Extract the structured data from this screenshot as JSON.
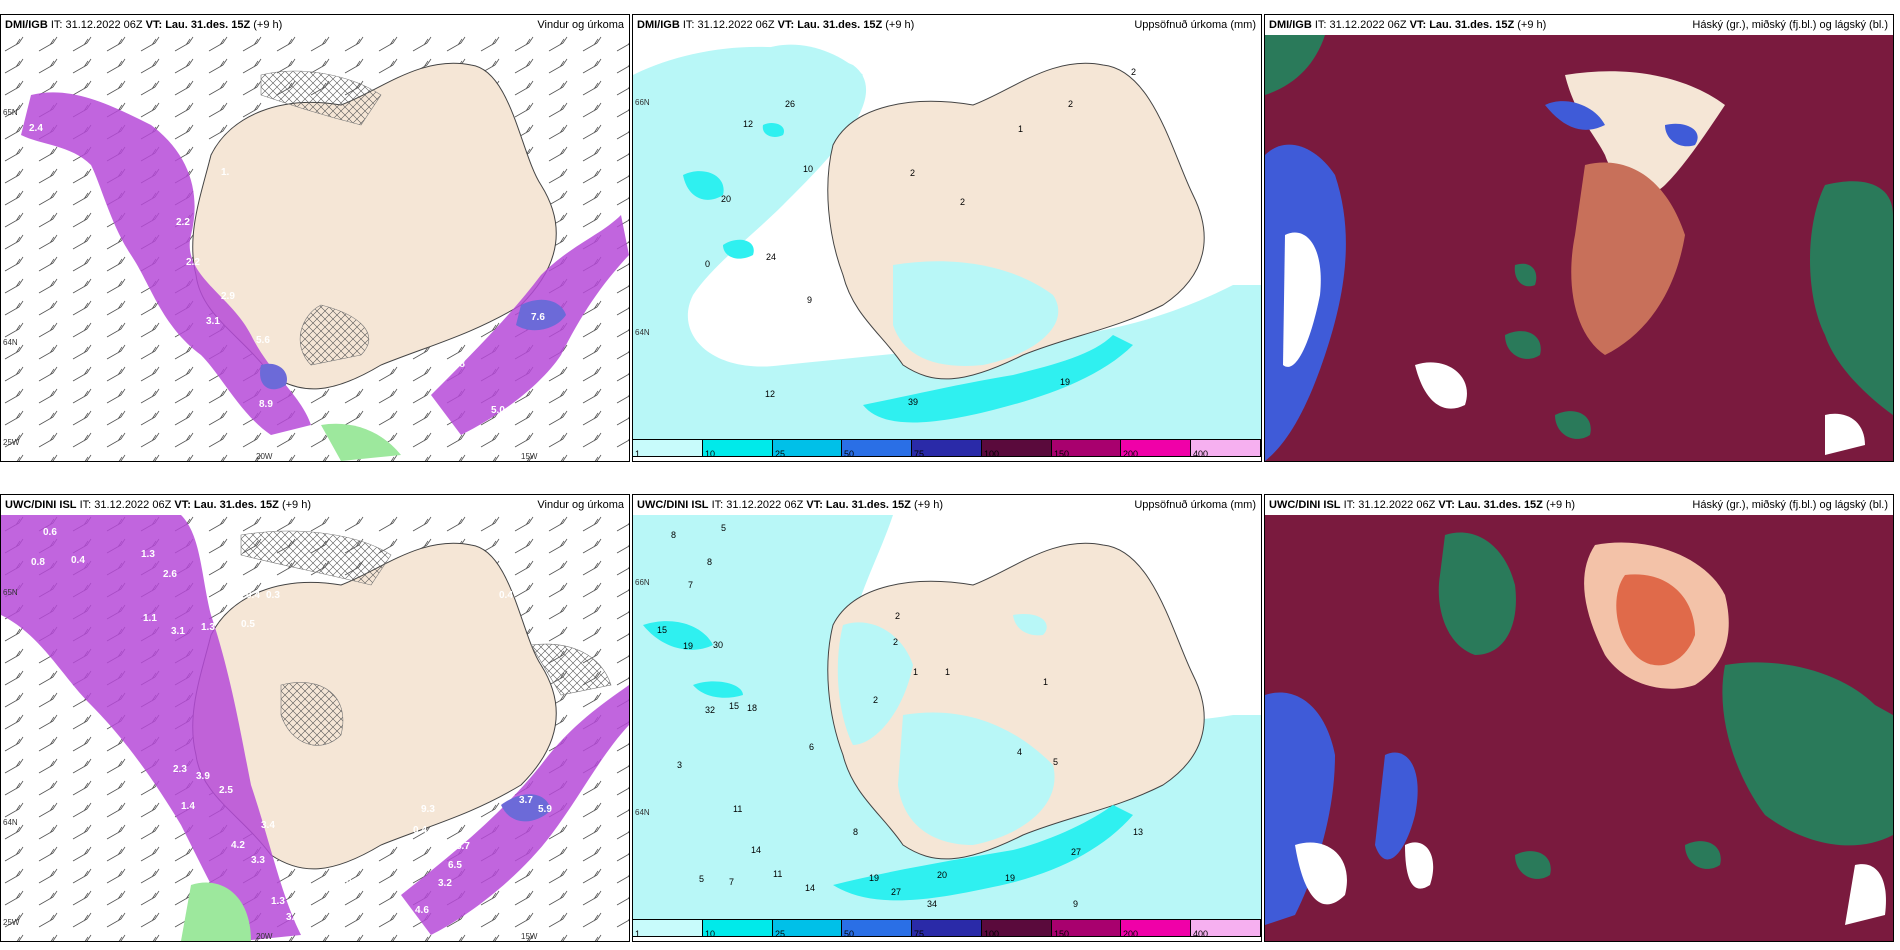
{
  "panels": [
    {
      "model": "DMI/IGB",
      "it": "IT: 31.12.2022 06Z",
      "vt": "VT: Lau. 31.des. 15Z",
      "lead": "(+9 h)",
      "variable": "Vindur og úrkoma",
      "values": [
        "2.4",
        "2.1",
        "1.",
        "4.0",
        "2.2",
        "2.2",
        "2.9",
        "3.1",
        "5.6",
        "8.9",
        "7.6",
        "0.8",
        "5.0",
        "4.2",
        "2.1"
      ],
      "axis_labels": [
        "65N",
        "64N",
        "25W",
        "20W",
        "15W"
      ]
    },
    {
      "model": "DMI/IGB",
      "it": "IT: 31.12.2022 06Z",
      "vt": "VT: Lau. 31.des. 15Z",
      "lead": "(+9 h)",
      "variable": "Uppsöfnuð úrkoma (mm)",
      "values": [
        "26",
        "12",
        "10",
        "20",
        "2",
        "2",
        "2",
        "1",
        "0",
        "24",
        "9",
        "12",
        "19",
        "39",
        "2"
      ],
      "axis_labels": [
        "66N",
        "64N"
      ]
    },
    {
      "model": "DMI/IGB",
      "it": "IT: 31.12.2022 06Z",
      "vt": "VT: Lau. 31.des. 15Z",
      "lead": "(+9 h)",
      "variable": "Háský (gr.), miðský (fj.bl.) og lágský (bl.)"
    },
    {
      "model": "UWC/DINI ISL",
      "it": "IT: 31.12.2022 06Z",
      "vt": "VT: Lau. 31.des. 15Z",
      "lead": "(+9 h)",
      "variable": "Vindur og úrkoma",
      "values": [
        "0.6",
        "0.8",
        "0.4",
        "1.3",
        "2.6",
        "3.1",
        "1.1",
        "1.3",
        "0.5",
        "0.4",
        "0.3",
        "2.3",
        "3.9",
        "2.5",
        "1.4",
        "3.4",
        "4.2",
        "3.3",
        "1.3",
        "3.1",
        "0.3",
        "0.4",
        "3.7",
        "5.9",
        "5.7",
        "6.5",
        "3.2",
        "4.6",
        "0.3",
        "0.4",
        "9.3"
      ],
      "axis_labels": [
        "65N",
        "64N",
        "25W",
        "20W",
        "15W"
      ]
    },
    {
      "model": "UWC/DINI ISL",
      "it": "IT: 31.12.2022 06Z",
      "vt": "VT: Lau. 31.des. 15Z",
      "lead": "(+9 h)",
      "variable": "Uppsöfnuð úrkoma (mm)",
      "values": [
        "8",
        "5",
        "8",
        "7",
        "15",
        "19",
        "30",
        "32",
        "15",
        "18",
        "2",
        "2",
        "2",
        "1",
        "1",
        "3",
        "11",
        "14",
        "5",
        "7",
        "11",
        "14",
        "19",
        "27",
        "20",
        "34",
        "19",
        "27",
        "13",
        "9",
        "1",
        "4",
        "5",
        "6",
        "8"
      ],
      "axis_labels": [
        "66N",
        "64N"
      ]
    },
    {
      "model": "UWC/DINI ISL",
      "it": "IT: 31.12.2022 06Z",
      "vt": "VT: Lau. 31.des. 15Z",
      "lead": "(+9 h)",
      "variable": "Háský (gr.), miðský (fj.bl.) og lágský (bl.)"
    }
  ],
  "precip_legend": {
    "labels": [
      "1",
      "10",
      "25",
      "50",
      "75",
      "100",
      "150",
      "200",
      "400"
    ],
    "colors": [
      "#c8fbfb",
      "#00eaea",
      "#00c0e8",
      "#2a6fe6",
      "#2a2aa8",
      "#5a0a3c",
      "#a8006e",
      "#f000a8",
      "#f6b0f0"
    ]
  },
  "colors": {
    "land": "#f5e6d6",
    "precip_light": "#b8f7f7",
    "precip_med": "#2ff0f0",
    "wind_precip_purple": "#b64ad8",
    "wind_precip_dark": "#5b2a8a",
    "cloud_high": "#2a7a5a",
    "cloud_mid": "#7a1a3e",
    "cloud_low": "#3f5bd8"
  }
}
